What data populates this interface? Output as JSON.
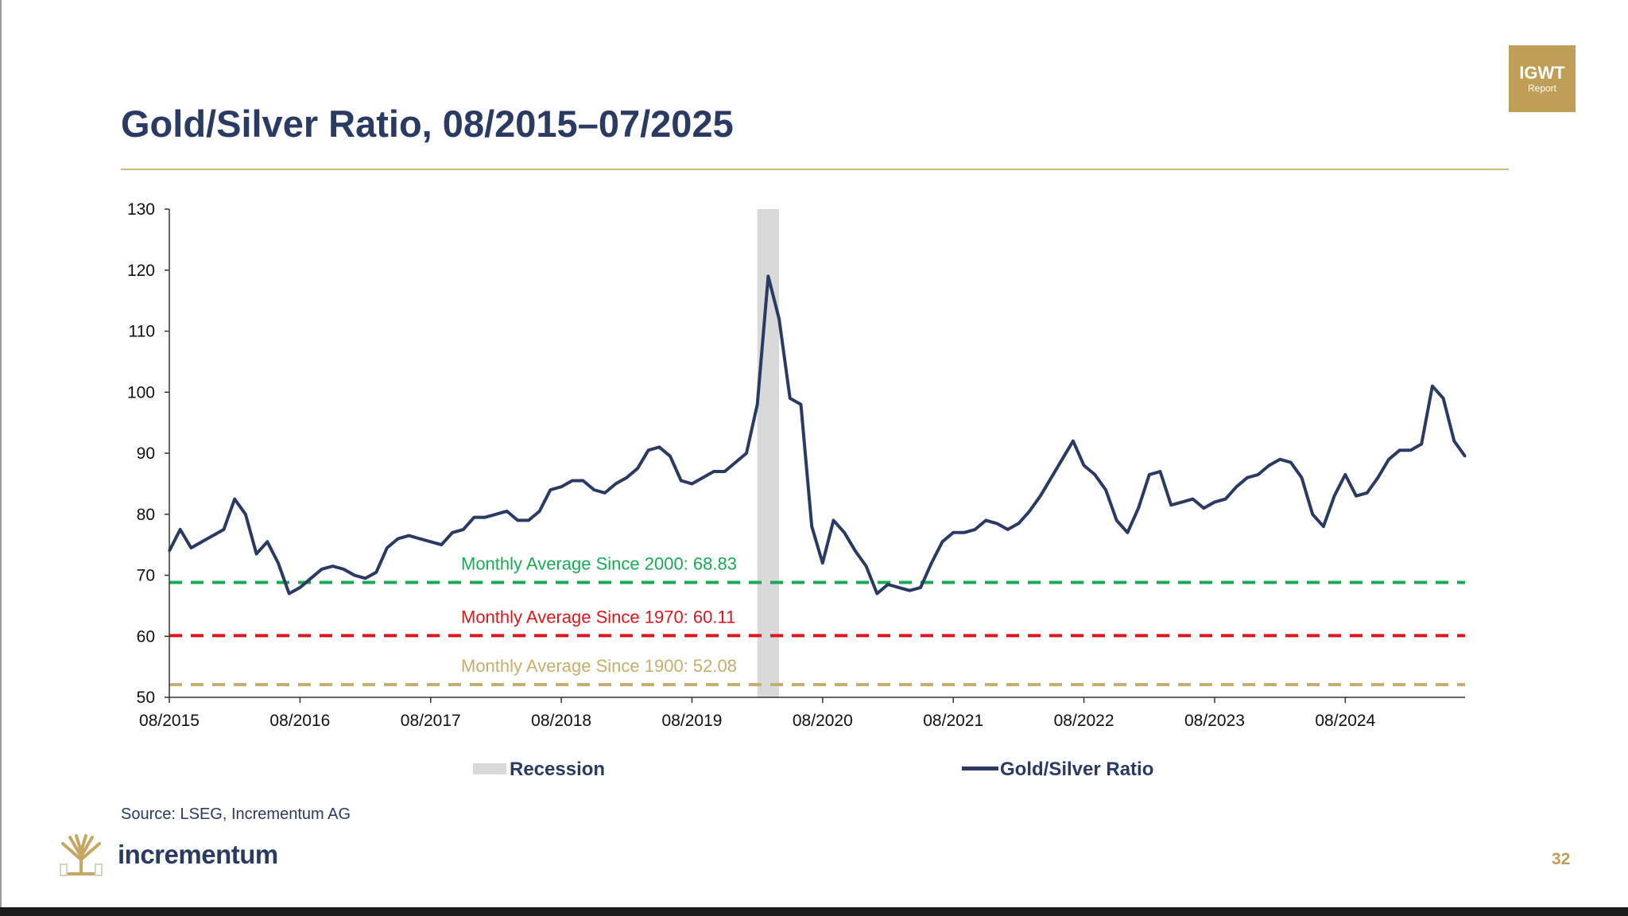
{
  "slide": {
    "title": "Gold/Silver Ratio, 08/2015–07/2025",
    "badge": {
      "main": "IGWT",
      "sub": "Report"
    },
    "source": "Source: LSEG, Incrementum AG",
    "brand": "incrementum",
    "page_number": "32"
  },
  "colors": {
    "title": "#2b3a62",
    "series_line": "#2b3a62",
    "recession": "#d9d9d9",
    "avg_2000": "#1aaa55",
    "avg_1970": "#e0161c",
    "avg_1900": "#c5ae6e",
    "gold_accent": "#bf9e57"
  },
  "chart_data": {
    "type": "line",
    "title": "Gold/Silver Ratio, 08/2015–07/2025",
    "xlabel": "",
    "ylabel": "",
    "x_range": [
      "2015-08",
      "2025-07"
    ],
    "ylim": [
      50,
      130
    ],
    "y_ticks": [
      50,
      60,
      70,
      80,
      90,
      100,
      110,
      120,
      130
    ],
    "x_ticks": [
      "08/2015",
      "08/2016",
      "08/2017",
      "08/2018",
      "08/2019",
      "08/2020",
      "08/2021",
      "08/2022",
      "08/2023",
      "08/2024"
    ],
    "grid": false,
    "legend_position": "bottom",
    "legend": [
      {
        "label": "Recession",
        "kind": "area"
      },
      {
        "label": "Gold/Silver Ratio",
        "kind": "line"
      }
    ],
    "recession": {
      "start": "2020-02",
      "end": "2020-04"
    },
    "reference_lines": [
      {
        "label": "Monthly Average Since 2000: 68.83",
        "value": 68.83,
        "color": "#1aaa55"
      },
      {
        "label": "Monthly Average Since 1970: 60.11",
        "value": 60.11,
        "color": "#e0161c"
      },
      {
        "label": "Monthly Average Since 1900: 52.08",
        "value": 52.08,
        "color": "#c5ae6e"
      }
    ],
    "series": [
      {
        "name": "Gold/Silver Ratio",
        "color": "#2b3a62",
        "points": [
          [
            "2015-08",
            74.0
          ],
          [
            "2015-09",
            77.5
          ],
          [
            "2015-10",
            74.5
          ],
          [
            "2015-11",
            75.5
          ],
          [
            "2015-12",
            76.5
          ],
          [
            "2016-01",
            77.5
          ],
          [
            "2016-02",
            82.5
          ],
          [
            "2016-03",
            80.0
          ],
          [
            "2016-04",
            73.5
          ],
          [
            "2016-05",
            75.5
          ],
          [
            "2016-06",
            72.0
          ],
          [
            "2016-07",
            67.0
          ],
          [
            "2016-08",
            68.0
          ],
          [
            "2016-09",
            69.5
          ],
          [
            "2016-10",
            71.0
          ],
          [
            "2016-11",
            71.5
          ],
          [
            "2016-12",
            71.0
          ],
          [
            "2017-01",
            70.0
          ],
          [
            "2017-02",
            69.5
          ],
          [
            "2017-03",
            70.5
          ],
          [
            "2017-04",
            74.5
          ],
          [
            "2017-05",
            76.0
          ],
          [
            "2017-06",
            76.5
          ],
          [
            "2017-07",
            76.0
          ],
          [
            "2017-08",
            75.5
          ],
          [
            "2017-09",
            75.0
          ],
          [
            "2017-10",
            77.0
          ],
          [
            "2017-11",
            77.5
          ],
          [
            "2017-12",
            79.5
          ],
          [
            "2018-01",
            79.5
          ],
          [
            "2018-02",
            80.0
          ],
          [
            "2018-03",
            80.5
          ],
          [
            "2018-04",
            79.0
          ],
          [
            "2018-05",
            79.0
          ],
          [
            "2018-06",
            80.5
          ],
          [
            "2018-07",
            84.0
          ],
          [
            "2018-08",
            84.5
          ],
          [
            "2018-09",
            85.5
          ],
          [
            "2018-10",
            85.5
          ],
          [
            "2018-11",
            84.0
          ],
          [
            "2018-12",
            83.5
          ],
          [
            "2019-01",
            85.0
          ],
          [
            "2019-02",
            86.0
          ],
          [
            "2019-03",
            87.5
          ],
          [
            "2019-04",
            90.5
          ],
          [
            "2019-05",
            91.0
          ],
          [
            "2019-06",
            89.5
          ],
          [
            "2019-07",
            85.5
          ],
          [
            "2019-08",
            85.0
          ],
          [
            "2019-09",
            86.0
          ],
          [
            "2019-10",
            87.0
          ],
          [
            "2019-11",
            87.0
          ],
          [
            "2019-12",
            88.5
          ],
          [
            "2020-01",
            90.0
          ],
          [
            "2020-02",
            98.0
          ],
          [
            "2020-03",
            119.0
          ],
          [
            "2020-04",
            112.0
          ],
          [
            "2020-05",
            99.0
          ],
          [
            "2020-06",
            98.0
          ],
          [
            "2020-07",
            78.0
          ],
          [
            "2020-08",
            72.0
          ],
          [
            "2020-09",
            79.0
          ],
          [
            "2020-10",
            77.0
          ],
          [
            "2020-11",
            74.0
          ],
          [
            "2020-12",
            71.5
          ],
          [
            "2021-01",
            67.0
          ],
          [
            "2021-02",
            68.5
          ],
          [
            "2021-03",
            68.0
          ],
          [
            "2021-04",
            67.5
          ],
          [
            "2021-05",
            68.0
          ],
          [
            "2021-06",
            72.0
          ],
          [
            "2021-07",
            75.5
          ],
          [
            "2021-08",
            77.0
          ],
          [
            "2021-09",
            77.0
          ],
          [
            "2021-10",
            77.5
          ],
          [
            "2021-11",
            79.0
          ],
          [
            "2021-12",
            78.5
          ],
          [
            "2022-01",
            77.5
          ],
          [
            "2022-02",
            78.5
          ],
          [
            "2022-03",
            80.5
          ],
          [
            "2022-04",
            83.0
          ],
          [
            "2022-05",
            86.0
          ],
          [
            "2022-06",
            89.0
          ],
          [
            "2022-07",
            92.0
          ],
          [
            "2022-08",
            88.0
          ],
          [
            "2022-09",
            86.5
          ],
          [
            "2022-10",
            84.0
          ],
          [
            "2022-11",
            79.0
          ],
          [
            "2022-12",
            77.0
          ],
          [
            "2023-01",
            81.0
          ],
          [
            "2023-02",
            86.5
          ],
          [
            "2023-03",
            87.0
          ],
          [
            "2023-04",
            81.5
          ],
          [
            "2023-05",
            82.0
          ],
          [
            "2023-06",
            82.5
          ],
          [
            "2023-07",
            81.0
          ],
          [
            "2023-08",
            82.0
          ],
          [
            "2023-09",
            82.5
          ],
          [
            "2023-10",
            84.5
          ],
          [
            "2023-11",
            86.0
          ],
          [
            "2023-12",
            86.5
          ],
          [
            "2024-01",
            88.0
          ],
          [
            "2024-02",
            89.0
          ],
          [
            "2024-03",
            88.5
          ],
          [
            "2024-04",
            86.0
          ],
          [
            "2024-05",
            80.0
          ],
          [
            "2024-06",
            78.0
          ],
          [
            "2024-07",
            83.0
          ],
          [
            "2024-08",
            86.5
          ],
          [
            "2024-09",
            83.0
          ],
          [
            "2024-10",
            83.5
          ],
          [
            "2024-11",
            86.0
          ],
          [
            "2024-12",
            89.0
          ],
          [
            "2025-01",
            90.5
          ],
          [
            "2025-02",
            90.5
          ],
          [
            "2025-03",
            91.5
          ],
          [
            "2025-04",
            101.0
          ],
          [
            "2025-05",
            99.0
          ],
          [
            "2025-06",
            92.0
          ],
          [
            "2025-07",
            89.5
          ]
        ]
      }
    ]
  }
}
